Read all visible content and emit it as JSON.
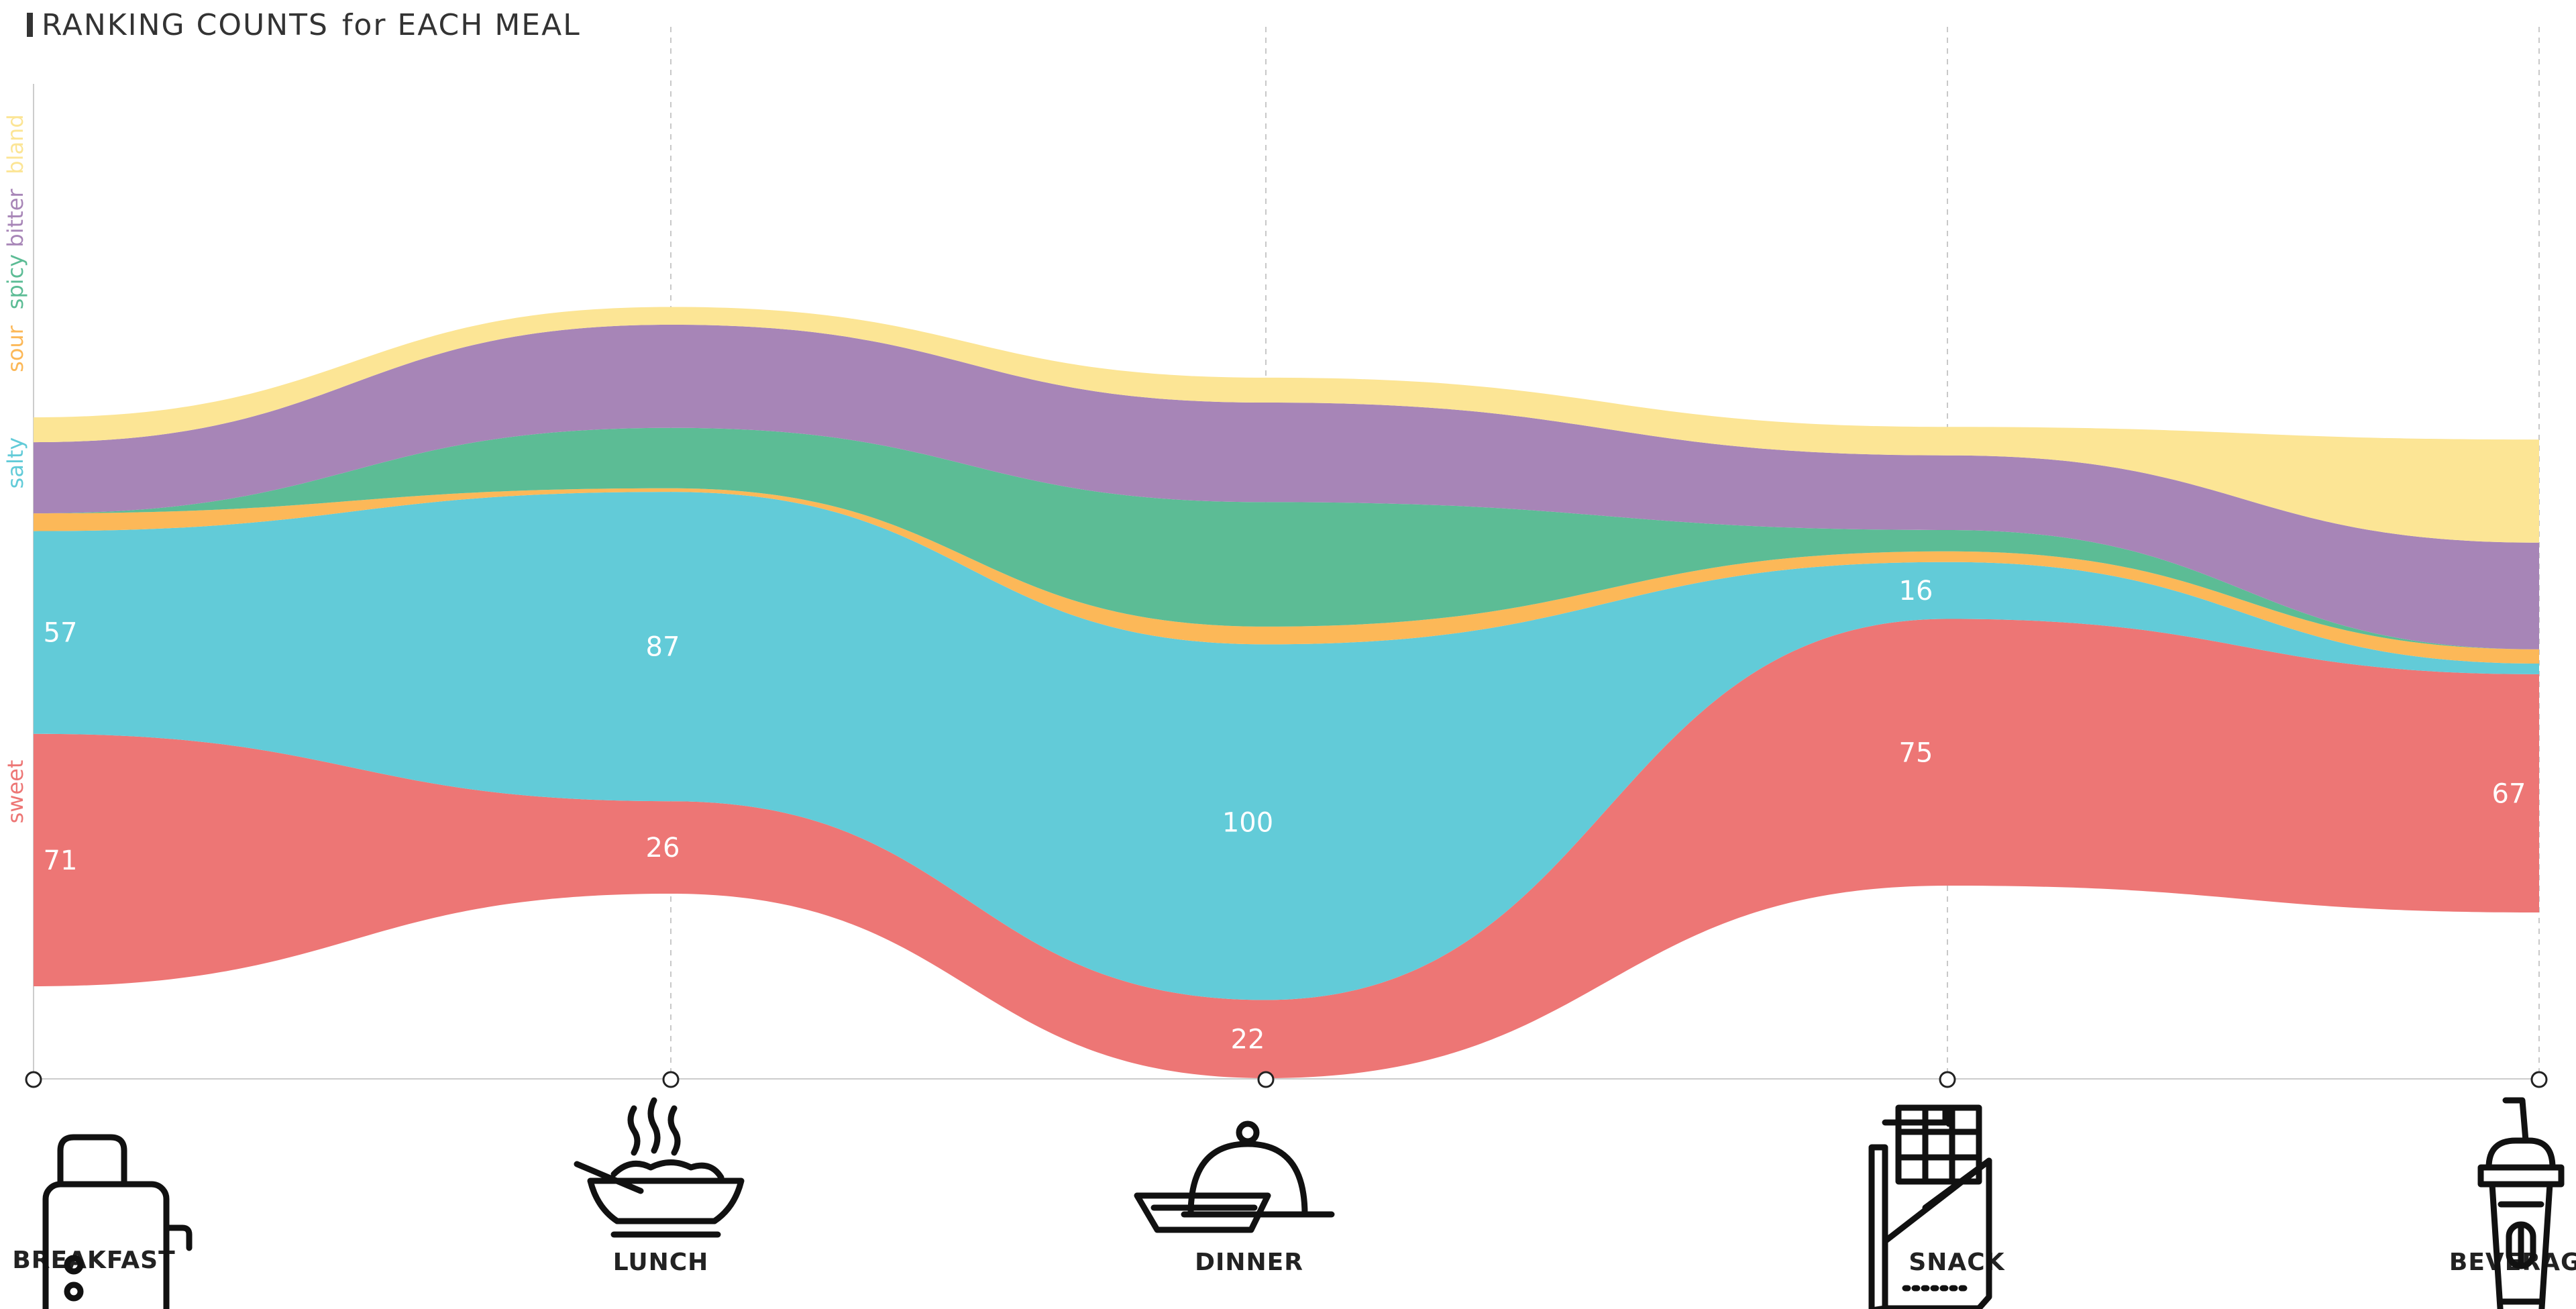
{
  "title": "RANKING COUNTS",
  "subtitle": "for EACH MEAL",
  "chart_data": {
    "type": "area",
    "subtype": "streamgraph",
    "categories": [
      "BREAKFAST",
      "LUNCH",
      "DINNER",
      "SNACK",
      "BEVERAGE"
    ],
    "series": [
      {
        "name": "sweet",
        "color": "#ED7675",
        "values": [
          71,
          26,
          22,
          75,
          67
        ]
      },
      {
        "name": "salty",
        "color": "#62CBD8",
        "values": [
          57,
          87,
          100,
          16,
          3
        ]
      },
      {
        "name": "sour",
        "color": "#FCB858",
        "values": [
          5,
          1,
          5,
          3,
          4
        ]
      },
      {
        "name": "spicy",
        "color": "#5CBC95",
        "values": [
          0,
          17,
          35,
          6,
          0
        ]
      },
      {
        "name": "bitter",
        "color": "#A785B7",
        "values": [
          20,
          29,
          28,
          21,
          30
        ]
      },
      {
        "name": "bland",
        "color": "#FCE595",
        "values": [
          7,
          5,
          7,
          8,
          29
        ]
      }
    ],
    "value_labels": {
      "sweet": [
        "71",
        "26",
        "22",
        "75",
        "67"
      ],
      "salty": [
        "57",
        "87",
        "100",
        "16",
        ""
      ]
    },
    "legend_position": "left-vertical",
    "grid": true
  },
  "meals": [
    {
      "label": "BREAKFAST",
      "icon": "toaster-icon"
    },
    {
      "label": "LUNCH",
      "icon": "rice-bowl-icon"
    },
    {
      "label": "DINNER",
      "icon": "cloche-icon"
    },
    {
      "label": "SNACK",
      "icon": "chocolate-bar-icon"
    },
    {
      "label": "BEVERAGE",
      "icon": "iced-coffee-icon"
    }
  ]
}
